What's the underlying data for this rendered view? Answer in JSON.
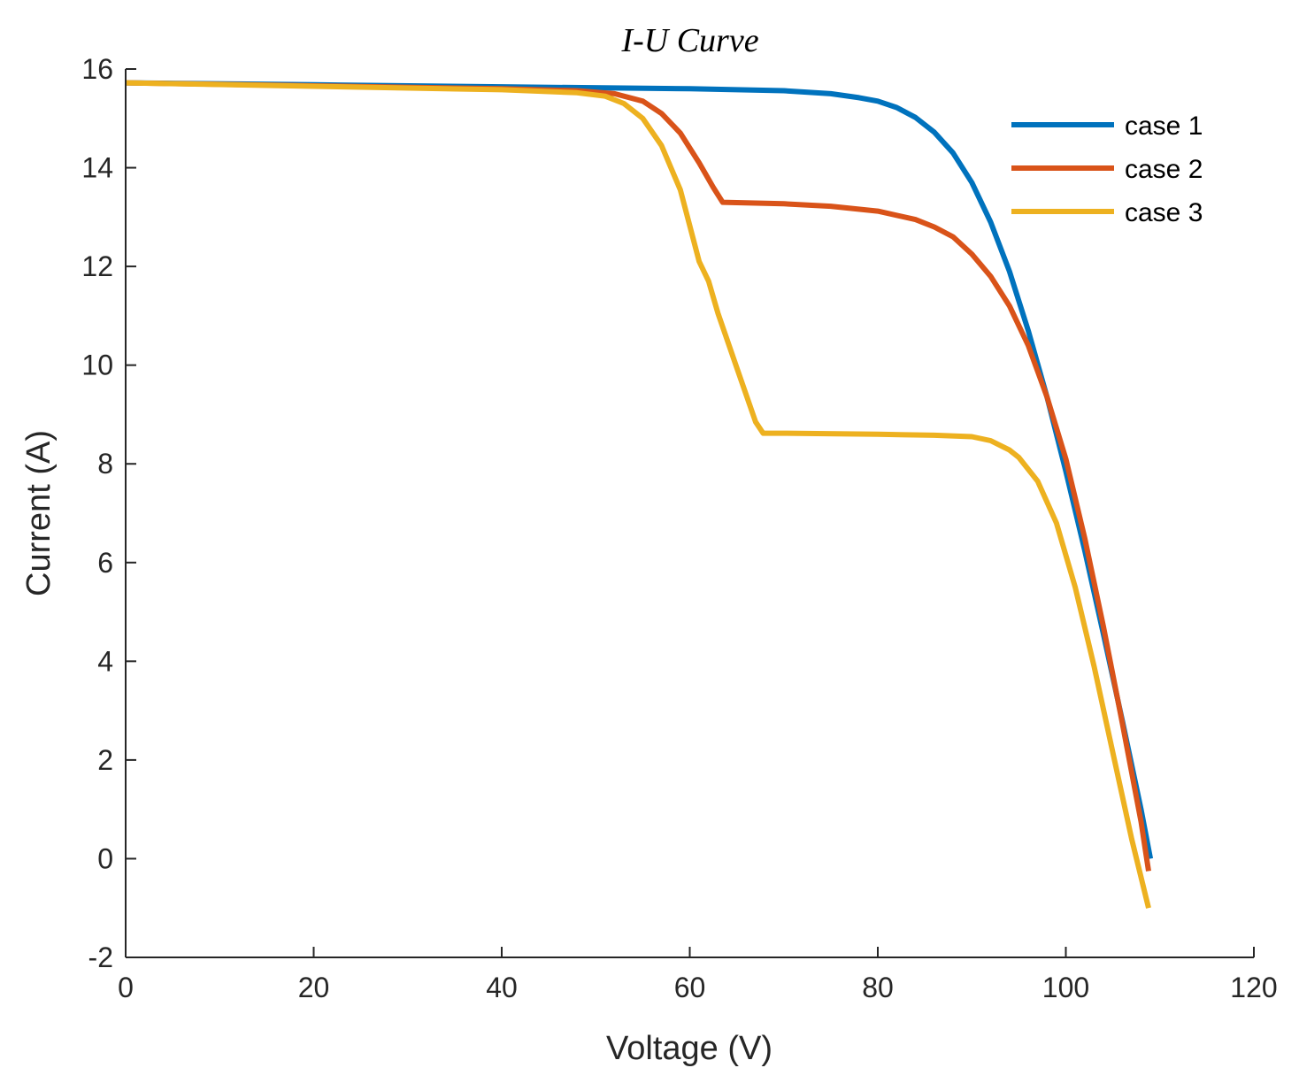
{
  "chart_data": {
    "type": "line",
    "title": "I-U Curve",
    "xlabel": "Voltage (V)",
    "ylabel": "Current (A)",
    "xlim": [
      0,
      120
    ],
    "ylim": [
      -2,
      16
    ],
    "xticks": [
      0,
      20,
      40,
      60,
      80,
      100,
      120
    ],
    "yticks": [
      -2,
      0,
      2,
      4,
      6,
      8,
      10,
      12,
      14,
      16
    ],
    "grid": false,
    "legend_position": "top-right",
    "series": [
      {
        "name": "case 1",
        "color": "#0072BD",
        "points": [
          [
            0,
            15.72
          ],
          [
            20,
            15.68
          ],
          [
            40,
            15.64
          ],
          [
            60,
            15.6
          ],
          [
            70,
            15.56
          ],
          [
            75,
            15.5
          ],
          [
            78,
            15.42
          ],
          [
            80,
            15.35
          ],
          [
            82,
            15.22
          ],
          [
            84,
            15.02
          ],
          [
            86,
            14.72
          ],
          [
            88,
            14.3
          ],
          [
            90,
            13.7
          ],
          [
            92,
            12.9
          ],
          [
            94,
            11.9
          ],
          [
            96,
            10.7
          ],
          [
            98,
            9.35
          ],
          [
            100,
            7.85
          ],
          [
            102,
            6.25
          ],
          [
            104,
            4.55
          ],
          [
            106,
            2.8
          ],
          [
            108,
            1.0
          ],
          [
            109,
            0.0
          ]
        ]
      },
      {
        "name": "case 2",
        "color": "#D95319",
        "points": [
          [
            0,
            15.72
          ],
          [
            20,
            15.66
          ],
          [
            40,
            15.6
          ],
          [
            48,
            15.56
          ],
          [
            52,
            15.5
          ],
          [
            55,
            15.35
          ],
          [
            57,
            15.1
          ],
          [
            59,
            14.7
          ],
          [
            61,
            14.1
          ],
          [
            62.5,
            13.6
          ],
          [
            63.5,
            13.3
          ],
          [
            70,
            13.27
          ],
          [
            75,
            13.22
          ],
          [
            80,
            13.12
          ],
          [
            84,
            12.95
          ],
          [
            86,
            12.8
          ],
          [
            88,
            12.6
          ],
          [
            90,
            12.25
          ],
          [
            92,
            11.8
          ],
          [
            94,
            11.2
          ],
          [
            96,
            10.4
          ],
          [
            98,
            9.35
          ],
          [
            100,
            8.1
          ],
          [
            102,
            6.5
          ],
          [
            104,
            4.7
          ],
          [
            106,
            2.75
          ],
          [
            108,
            0.75
          ],
          [
            108.8,
            -0.25
          ]
        ]
      },
      {
        "name": "case 3",
        "color": "#EDB120",
        "points": [
          [
            0,
            15.72
          ],
          [
            20,
            15.65
          ],
          [
            40,
            15.58
          ],
          [
            48,
            15.52
          ],
          [
            51,
            15.45
          ],
          [
            53,
            15.3
          ],
          [
            55,
            15.0
          ],
          [
            57,
            14.45
          ],
          [
            59,
            13.55
          ],
          [
            61,
            12.1
          ],
          [
            62,
            11.7
          ],
          [
            63,
            11.05
          ],
          [
            65,
            9.95
          ],
          [
            67,
            8.85
          ],
          [
            67.8,
            8.62
          ],
          [
            70,
            8.62
          ],
          [
            80,
            8.6
          ],
          [
            86,
            8.58
          ],
          [
            90,
            8.55
          ],
          [
            92,
            8.47
          ],
          [
            94,
            8.28
          ],
          [
            95,
            8.13
          ],
          [
            97,
            7.65
          ],
          [
            99,
            6.8
          ],
          [
            101,
            5.5
          ],
          [
            103,
            3.9
          ],
          [
            105,
            2.15
          ],
          [
            107,
            0.4
          ],
          [
            108.8,
            -1.0
          ]
        ]
      }
    ]
  }
}
